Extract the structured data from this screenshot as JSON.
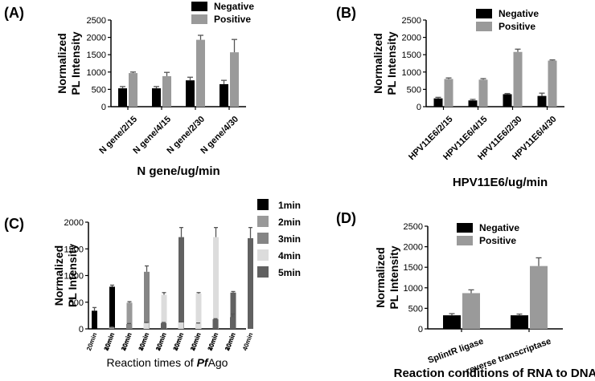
{
  "colors": {
    "negative": "#000000",
    "positive": "#9a9a9a",
    "m1": "#000000",
    "m2": "#999999",
    "m3": "#858585",
    "m4": "#dcdcdc",
    "m5": "#616161"
  },
  "chart_data": [
    {
      "panel": "(A)",
      "type": "bar",
      "ylabel": [
        "Normalized",
        "PL Intensity"
      ],
      "xlabel": "N gene/ug/min",
      "ylim": [
        0,
        2500
      ],
      "yticks": [
        0,
        500,
        1000,
        1500,
        2000,
        2500
      ],
      "categories": [
        "N gene/2/15",
        "N gene/4/15",
        "N gene/2/30",
        "N gene/4/30"
      ],
      "legend_position": "top-right",
      "series": [
        {
          "name": "Negative",
          "values": [
            530,
            530,
            760,
            650
          ],
          "errors": [
            50,
            50,
            90,
            110
          ]
        },
        {
          "name": "Positive",
          "values": [
            970,
            880,
            1930,
            1570
          ],
          "errors": [
            30,
            110,
            130,
            370
          ]
        }
      ]
    },
    {
      "panel": "(B)",
      "type": "bar",
      "ylabel": [
        "Normalized",
        "PL Intensity"
      ],
      "xlabel": "HPV11E6/ug/min",
      "ylim": [
        0,
        2500
      ],
      "yticks": [
        0,
        500,
        1000,
        1500,
        2000,
        2500
      ],
      "categories": [
        "HPV11E6/2/15",
        "HPV11E6/4/15",
        "HPV11E6/2/30",
        "HPV11E6/4/30"
      ],
      "legend_position": "top-left",
      "series": [
        {
          "name": "Negative",
          "values": [
            240,
            180,
            360,
            310
          ],
          "errors": [
            30,
            30,
            20,
            80
          ]
        },
        {
          "name": "Positive",
          "values": [
            800,
            780,
            1580,
            1330
          ],
          "errors": [
            30,
            30,
            80,
            20
          ]
        }
      ]
    },
    {
      "panel": "(C)",
      "type": "bar",
      "ylabel": [
        "Normalized",
        "PL Intensity"
      ],
      "xlabel_prefix": "Reaction times of ",
      "xlabel_italic": "Pf",
      "xlabel_suffix": "Ago",
      "ylim": [
        0,
        2000
      ],
      "yticks": [
        0,
        500,
        1000,
        1500,
        2000
      ],
      "legend_position": "top-right",
      "groups": [
        {
          "name": "1min",
          "color_key": "m1",
          "labels": [
            "20min",
            "40min"
          ],
          "values": [
            340,
            790
          ],
          "errors": [
            60,
            30
          ]
        },
        {
          "name": "2min",
          "color_key": "m2",
          "labels": [
            "20min",
            "40min"
          ],
          "values": [
            30,
            490
          ],
          "errors": [
            5,
            20
          ]
        },
        {
          "name": "3min",
          "color_key": "m3",
          "labels": [
            "20min",
            "40min"
          ],
          "values": [
            90,
            1070
          ],
          "errors": [
            10,
            110
          ]
        },
        {
          "name": "4min",
          "color_key": "m4",
          "labels": [
            "20min",
            "40min"
          ],
          "values": [
            110,
            640
          ],
          "errors": [
            10,
            40
          ]
        },
        {
          "name": "5min",
          "color_key": "m5",
          "labels": [
            "20min",
            "40min"
          ],
          "values": [
            110,
            1720
          ],
          "errors": [
            10,
            180
          ]
        },
        {
          "name": "",
          "color_key": "m4",
          "labels": [
            "20min",
            "40min"
          ],
          "values": [
            120,
            660
          ],
          "errors": [
            10,
            20
          ]
        },
        {
          "name": "",
          "color_key": "m4",
          "labels": [
            "20min",
            "40min"
          ],
          "values": [
            100,
            1720
          ],
          "errors": [
            10,
            180
          ]
        },
        {
          "name": "",
          "color_key": "m5",
          "labels": [
            "20min",
            "40min"
          ],
          "values": [
            180,
            680
          ],
          "errors": [
            10,
            20
          ]
        },
        {
          "name": "",
          "color_key": "m5",
          "labels": [
            "20min",
            "40min"
          ],
          "values": [
            220,
            1700
          ],
          "errors": [
            60,
            200
          ]
        }
      ],
      "legend": [
        "1min",
        "2min",
        "3min",
        "4min",
        "5min"
      ]
    },
    {
      "panel": "(D)",
      "type": "bar",
      "ylabel": [
        "Normalized",
        "PL Intensity"
      ],
      "xlabel": "Reaction conditions of RNA to DNA",
      "ylim": [
        0,
        2500
      ],
      "yticks": [
        0,
        500,
        1000,
        1500,
        2000,
        2500
      ],
      "categories": [
        "SplintR ligase",
        "reverse transcriptase"
      ],
      "legend_position": "top-left",
      "series": [
        {
          "name": "Negative",
          "values": [
            330,
            330
          ],
          "errors": [
            40,
            30
          ]
        },
        {
          "name": "Positive",
          "values": [
            870,
            1530
          ],
          "errors": [
            80,
            200
          ]
        }
      ]
    }
  ]
}
